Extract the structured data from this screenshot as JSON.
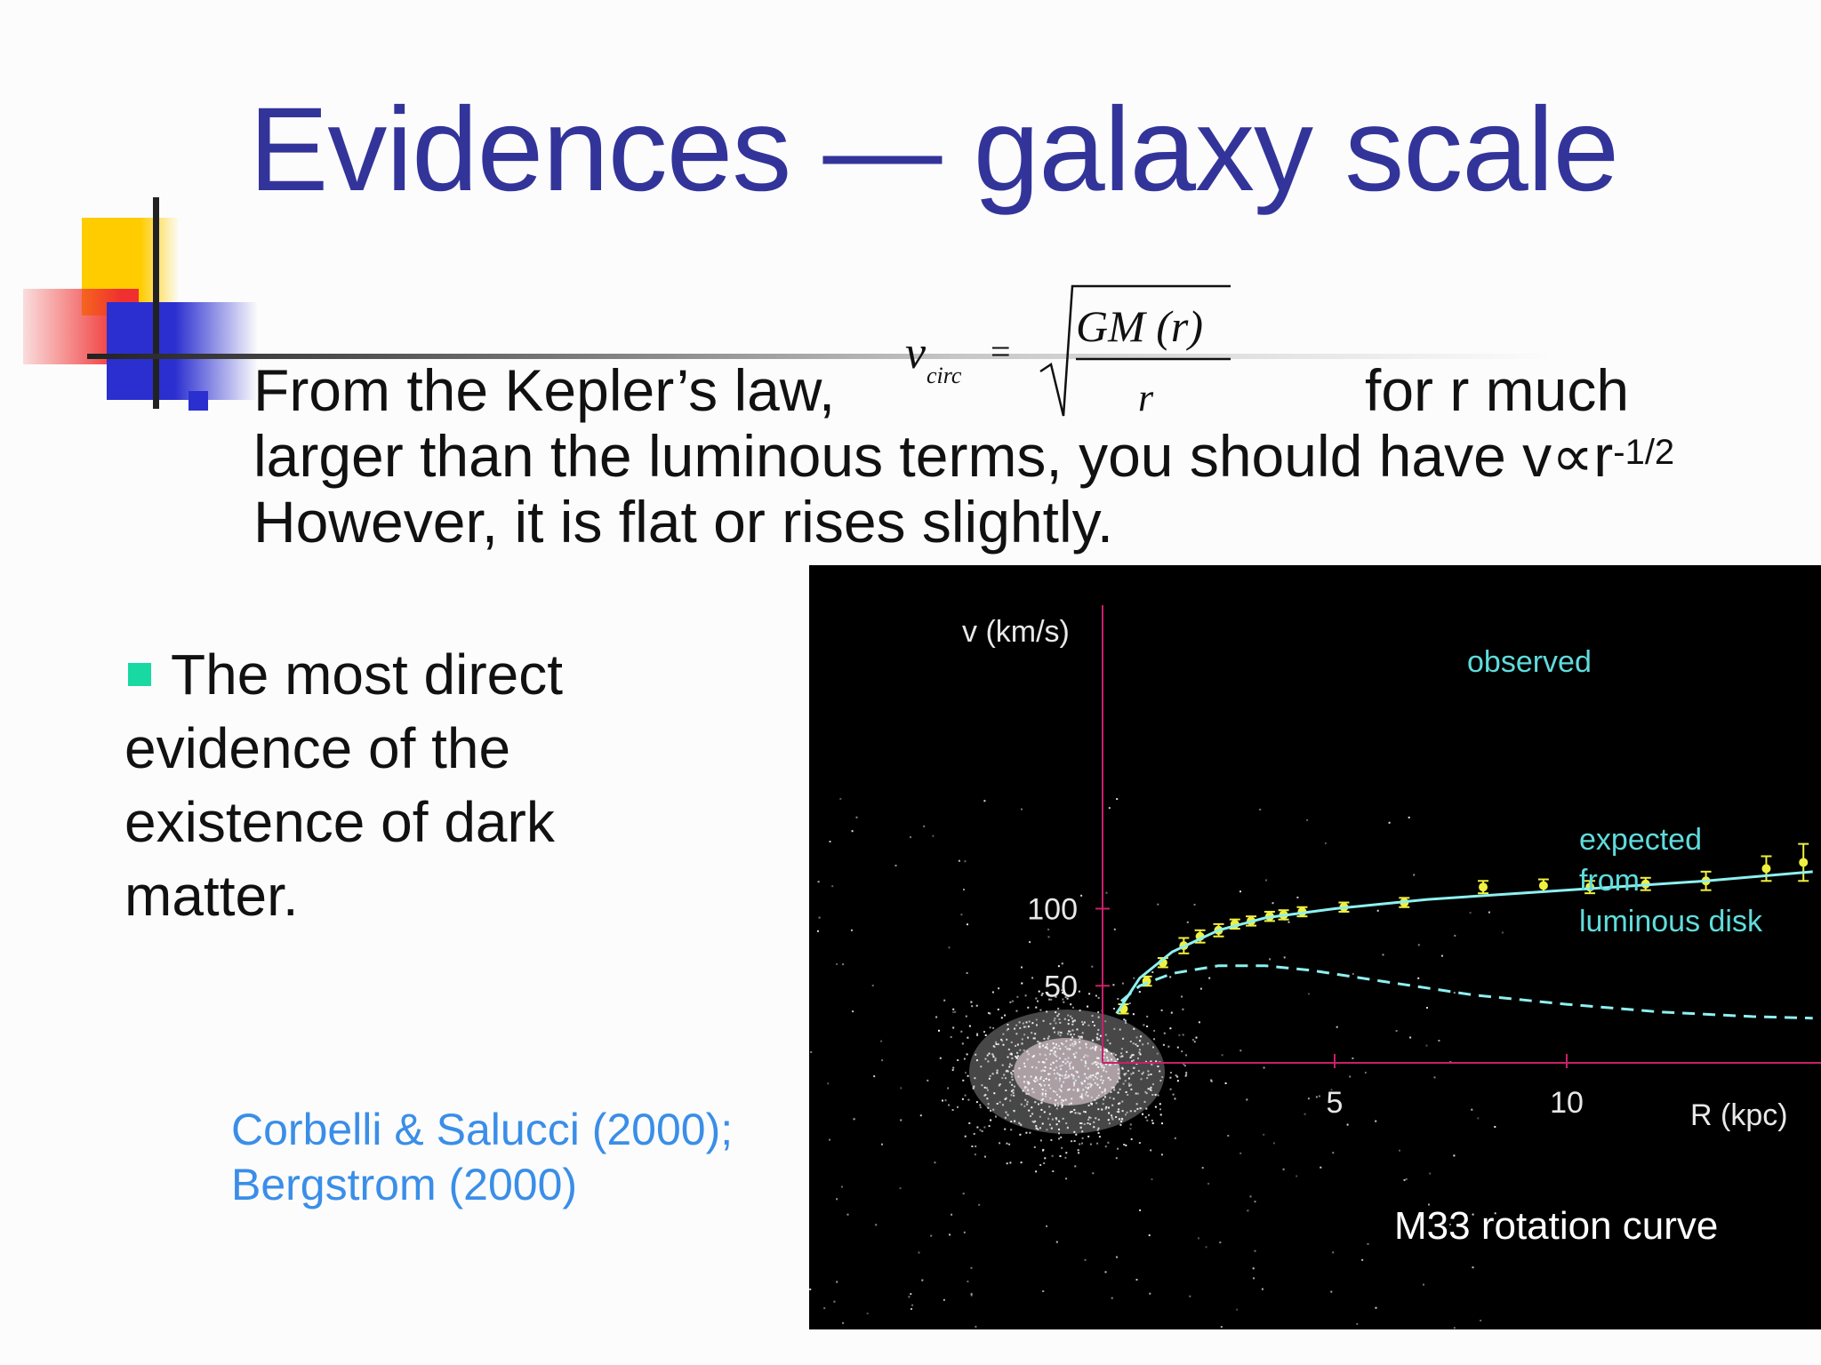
{
  "slide": {
    "title": "Evidences — galaxy scale",
    "bullet1_line1": "From the Kepler’s law,",
    "bullet1_line1_end": "for r much",
    "bullet1_line2": "larger than the luminous terms, you should have v∝r",
    "bullet1_line2_sup": "-1/2",
    "bullet1_line3": "However, it is flat or rises slightly.",
    "formula": {
      "v": "v",
      "subscript": "circ",
      "equals": "=",
      "numerator": "GM  (r)",
      "denominator": "r"
    },
    "bullet2": "The most direct evidence of the existence of dark matter.",
    "reference_line1": "Corbelli & Salucci (2000);",
    "reference_line2": "Bergstrom (2000)"
  },
  "colors": {
    "title": "#33349a",
    "reference": "#3a8ee8",
    "bullet2": "#19d9a3",
    "observed_label": "#5fdcdc",
    "points": "#f0f040",
    "curve": "#8ef0f0",
    "axes": "#c8206a"
  },
  "chart_data": {
    "type": "scatter",
    "title": "M33 rotation curve",
    "xlabel": "R (kpc)",
    "ylabel": "v (km/s)",
    "xlim": [
      0,
      15.3
    ],
    "ylim": [
      0,
      143
    ],
    "xticks": [
      5,
      10
    ],
    "yticks": [
      50,
      100
    ],
    "series": [
      {
        "name": "observed",
        "style": "points-with-errorbars",
        "x": [
          0.45,
          0.95,
          1.3,
          1.75,
          2.1,
          2.5,
          2.85,
          3.2,
          3.6,
          3.9,
          4.3,
          5.2,
          6.5,
          8.2,
          9.5,
          10.5,
          11.7,
          13.0,
          14.3,
          15.1
        ],
        "y": [
          35,
          53,
          65,
          76,
          82,
          86,
          90,
          92,
          95,
          96,
          98,
          101,
          104,
          114,
          115,
          114,
          116,
          118,
          126,
          130
        ],
        "err": [
          3,
          3,
          3,
          5,
          4,
          4,
          3,
          3,
          3,
          3,
          3,
          3,
          3,
          4,
          4,
          4,
          4,
          6,
          8,
          12
        ]
      },
      {
        "name": "observed-fit",
        "style": "solid",
        "x": [
          0.3,
          0.8,
          1.5,
          2.5,
          3.5,
          5,
          7,
          9,
          11,
          13,
          15.3
        ],
        "y": [
          32,
          55,
          72,
          86,
          94,
          100,
          106,
          110,
          114,
          118,
          124
        ]
      },
      {
        "name": "expected from luminous disk",
        "style": "dashed",
        "x": [
          0.4,
          0.8,
          1.5,
          2.5,
          3.5,
          4.5,
          6,
          8,
          10,
          12,
          14,
          15.3
        ],
        "y": [
          40,
          50,
          58,
          63,
          63,
          60,
          53,
          44,
          38,
          33,
          30,
          29
        ]
      }
    ],
    "annotations": {
      "observed": "observed",
      "expected_line1": "expected",
      "expected_line2": "from",
      "expected_line3": "luminous disk"
    }
  }
}
